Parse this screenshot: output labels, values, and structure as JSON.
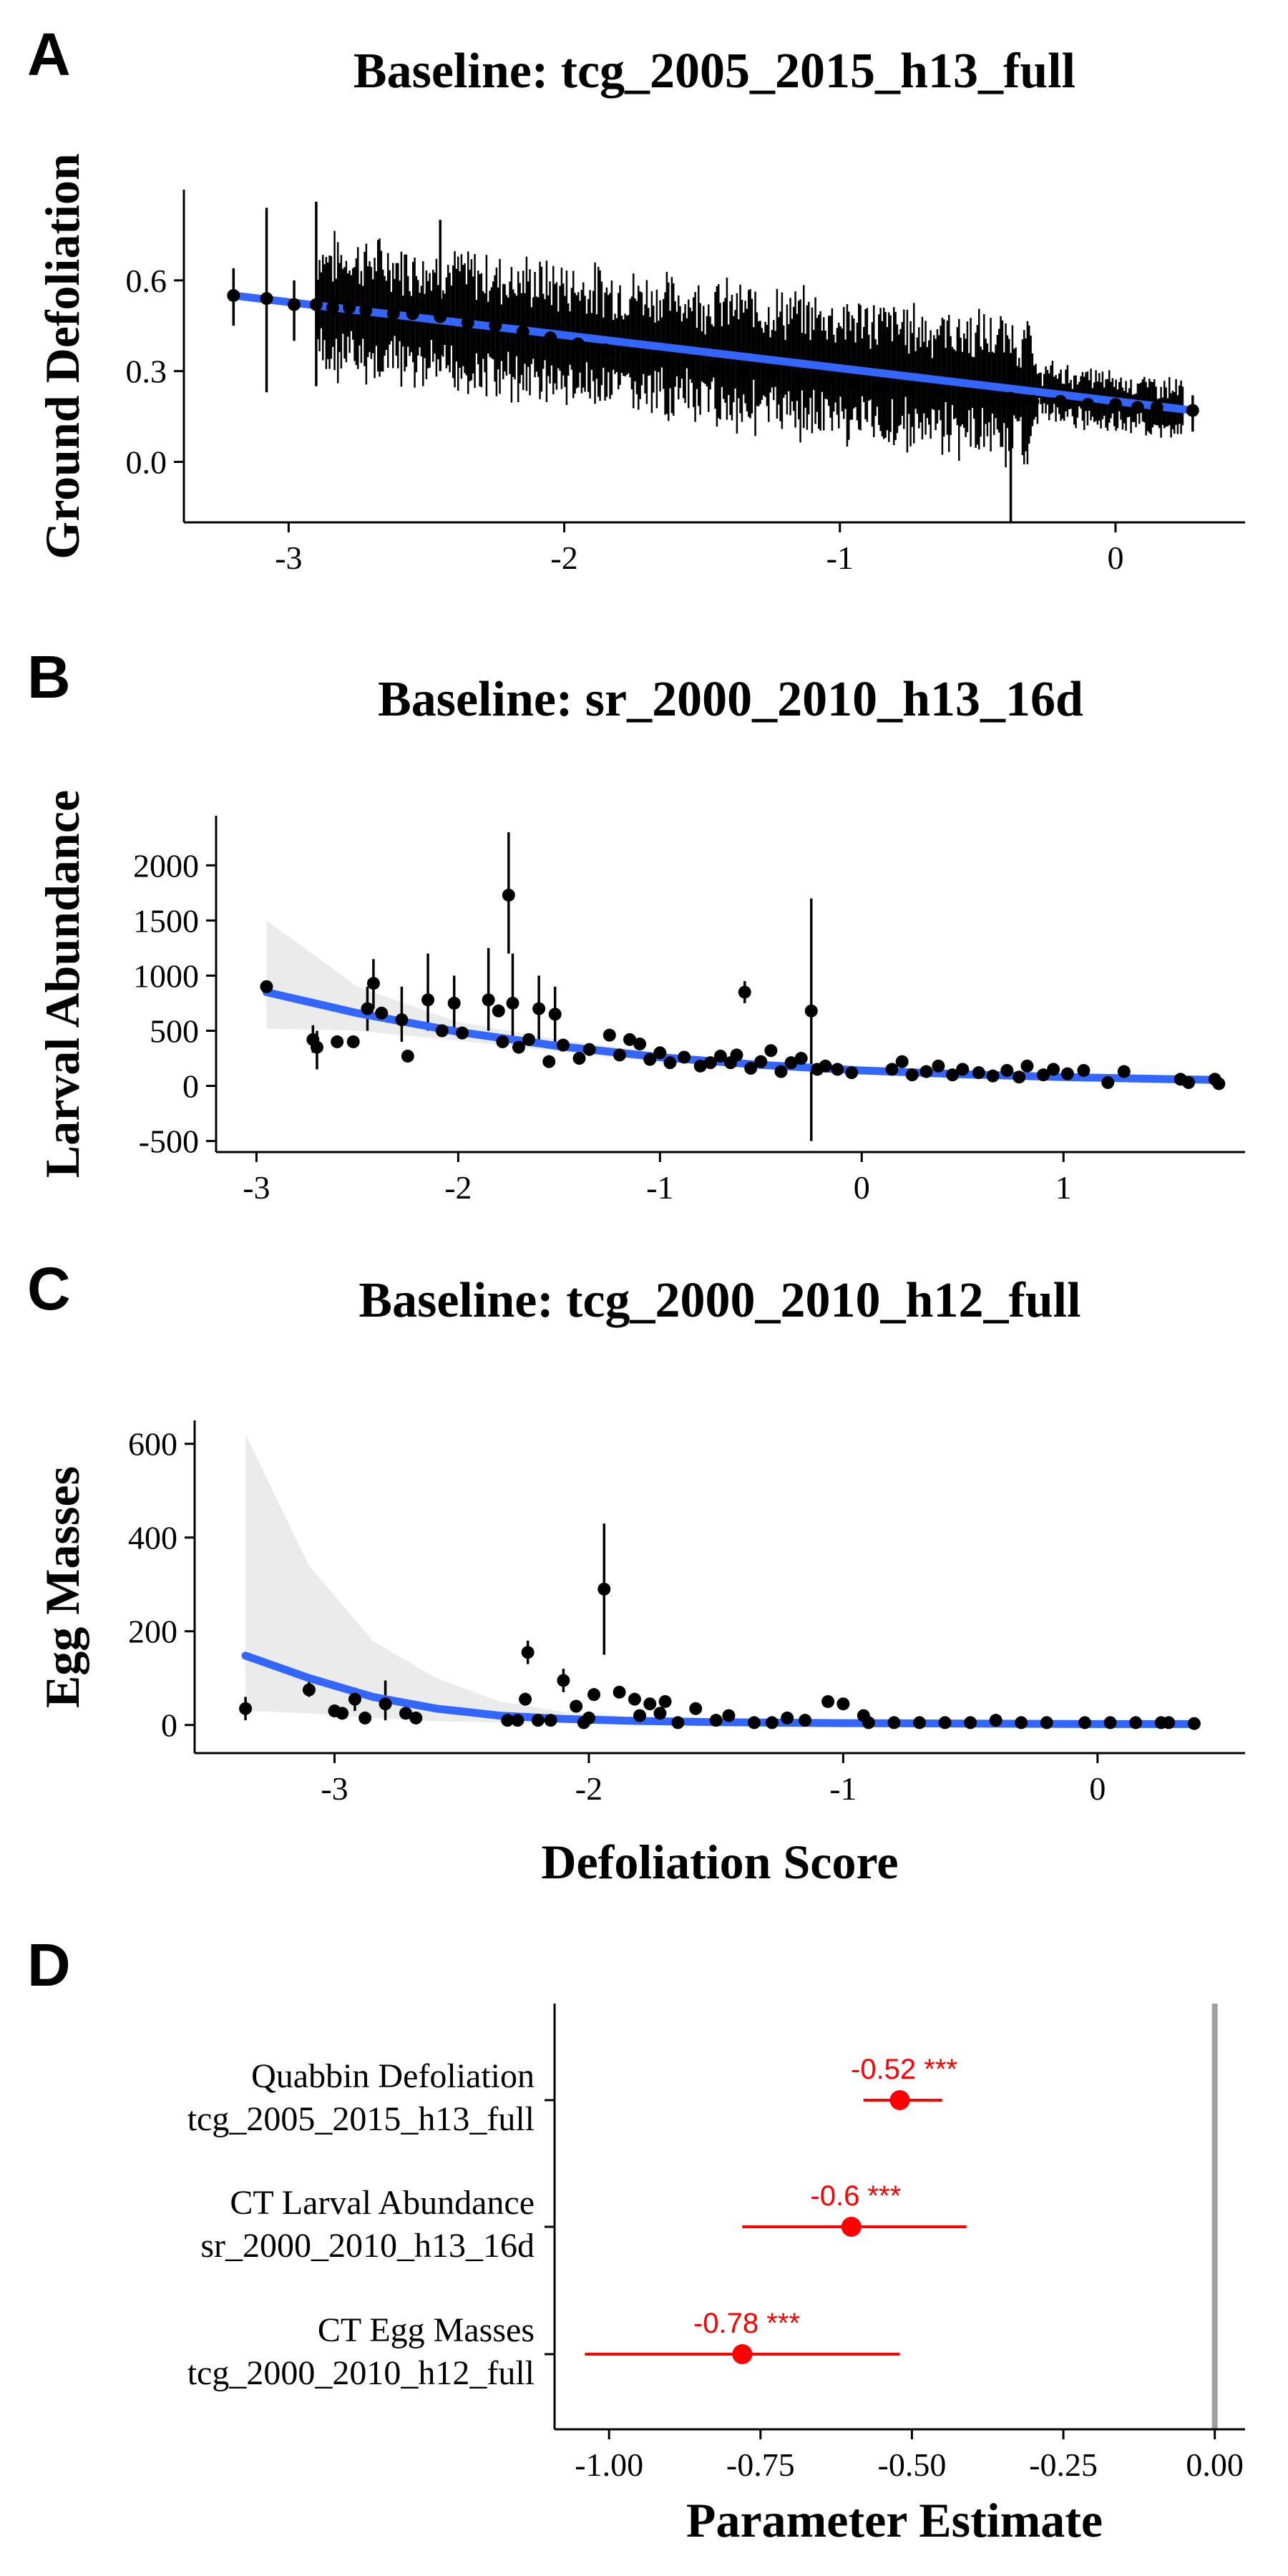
{
  "chart_data": [
    {
      "panel": "A",
      "type": "scatter",
      "title": "Baseline: tcg_2005_2015_h13_full",
      "xlabel": "",
      "ylabel": "Ground Defoliation",
      "xlim": [
        -3.38,
        0.47
      ],
      "ylim": [
        -0.2,
        0.9
      ],
      "xticks": [
        -3,
        -2,
        -1,
        0
      ],
      "yticks": [
        0.0,
        0.3,
        0.6
      ],
      "ytick_labels": [
        "0.0",
        "0.3",
        "0.6"
      ],
      "trend": {
        "x": [
          -3.2,
          0.28
        ],
        "y": [
          0.55,
          0.17
        ]
      },
      "points": [
        {
          "x": -3.2,
          "y": 0.55,
          "lo": 0.45,
          "hi": 0.64
        },
        {
          "x": -3.08,
          "y": 0.54,
          "lo": 0.23,
          "hi": 0.84
        },
        {
          "x": -2.98,
          "y": 0.52,
          "lo": 0.4,
          "hi": 0.6
        },
        {
          "x": -2.9,
          "y": 0.52,
          "lo": 0.25,
          "hi": 0.86
        },
        {
          "x": -2.84,
          "y": 0.51
        },
        {
          "x": -2.78,
          "y": 0.51
        },
        {
          "x": -2.72,
          "y": 0.5
        },
        {
          "x": -2.62,
          "y": 0.49
        },
        {
          "x": -2.55,
          "y": 0.49
        },
        {
          "x": -2.45,
          "y": 0.48,
          "lo": 0.3,
          "hi": 0.8
        },
        {
          "x": -2.35,
          "y": 0.46
        },
        {
          "x": -2.25,
          "y": 0.45
        },
        {
          "x": -2.15,
          "y": 0.43
        },
        {
          "x": -2.05,
          "y": 0.41
        },
        {
          "x": -1.95,
          "y": 0.39
        },
        {
          "x": -1.85,
          "y": 0.37
        },
        {
          "x": -1.75,
          "y": 0.35
        },
        {
          "x": -1.65,
          "y": 0.34
        },
        {
          "x": -1.55,
          "y": 0.33
        },
        {
          "x": -1.45,
          "y": 0.31
        },
        {
          "x": -1.35,
          "y": 0.3
        },
        {
          "x": -1.25,
          "y": 0.29
        },
        {
          "x": -1.15,
          "y": 0.28
        },
        {
          "x": -1.05,
          "y": 0.27
        },
        {
          "x": -0.95,
          "y": 0.26
        },
        {
          "x": -0.85,
          "y": 0.25
        },
        {
          "x": -0.75,
          "y": 0.24
        },
        {
          "x": -0.65,
          "y": 0.23
        },
        {
          "x": -0.55,
          "y": 0.22
        },
        {
          "x": -0.45,
          "y": 0.21
        },
        {
          "x": -0.38,
          "y": 0.21,
          "lo": -0.2,
          "hi": 0.36
        },
        {
          "x": -0.3,
          "y": 0.2
        },
        {
          "x": -0.2,
          "y": 0.2
        },
        {
          "x": -0.1,
          "y": 0.19
        },
        {
          "x": 0.0,
          "y": 0.19
        },
        {
          "x": 0.08,
          "y": 0.18
        },
        {
          "x": 0.15,
          "y": 0.18
        },
        {
          "x": 0.28,
          "y": 0.17,
          "lo": 0.1,
          "hi": 0.22
        }
      ]
    },
    {
      "panel": "B",
      "type": "scatter",
      "title": "Baseline: sr_2000_2010_h13_16d",
      "xlabel": "",
      "ylabel": "Larval Abundance",
      "xlim": [
        -3.2,
        1.9
      ],
      "ylim": [
        -600,
        2450
      ],
      "xticks": [
        -3,
        -2,
        -1,
        0,
        1
      ],
      "yticks": [
        -500,
        0,
        500,
        1000,
        1500,
        2000
      ],
      "trend": {
        "x": [
          -2.95,
          -2.5,
          -2.0,
          -1.5,
          -1.0,
          -0.5,
          0.0,
          0.5,
          1.0,
          1.5,
          1.75
        ],
        "y": [
          850,
          660,
          490,
          360,
          260,
          190,
          140,
          105,
          80,
          62,
          55
        ]
      },
      "band_lower": [
        520,
        500,
        410,
        310,
        220,
        160,
        115,
        85,
        60,
        40,
        30
      ],
      "band_upper": [
        1500,
        900,
        580,
        420,
        300,
        220,
        165,
        125,
        100,
        85,
        80
      ],
      "points": [
        {
          "x": -2.95,
          "y": 900
        },
        {
          "x": -2.72,
          "y": 420,
          "lo": 300,
          "hi": 550
        },
        {
          "x": -2.7,
          "y": 350,
          "lo": 150,
          "hi": 500
        },
        {
          "x": -2.6,
          "y": 400
        },
        {
          "x": -2.52,
          "y": 400
        },
        {
          "x": -2.45,
          "y": 700,
          "lo": 500,
          "hi": 900
        },
        {
          "x": -2.42,
          "y": 930,
          "lo": 700,
          "hi": 1150
        },
        {
          "x": -2.38,
          "y": 660
        },
        {
          "x": -2.28,
          "y": 600,
          "lo": 400,
          "hi": 900
        },
        {
          "x": -2.25,
          "y": 270
        },
        {
          "x": -2.15,
          "y": 780,
          "lo": 500,
          "hi": 1200
        },
        {
          "x": -2.08,
          "y": 500
        },
        {
          "x": -2.02,
          "y": 750,
          "lo": 500,
          "hi": 1000
        },
        {
          "x": -1.98,
          "y": 480
        },
        {
          "x": -1.85,
          "y": 780,
          "lo": 500,
          "hi": 1250
        },
        {
          "x": -1.8,
          "y": 680
        },
        {
          "x": -1.78,
          "y": 400
        },
        {
          "x": -1.75,
          "y": 1730,
          "lo": 1200,
          "hi": 2300
        },
        {
          "x": -1.73,
          "y": 750,
          "lo": 400,
          "hi": 1200
        },
        {
          "x": -1.7,
          "y": 350
        },
        {
          "x": -1.65,
          "y": 420
        },
        {
          "x": -1.6,
          "y": 700,
          "lo": 400,
          "hi": 1000
        },
        {
          "x": -1.55,
          "y": 220
        },
        {
          "x": -1.52,
          "y": 650,
          "lo": 400,
          "hi": 900
        },
        {
          "x": -1.48,
          "y": 370
        },
        {
          "x": -1.4,
          "y": 250
        },
        {
          "x": -1.35,
          "y": 330
        },
        {
          "x": -1.25,
          "y": 460
        },
        {
          "x": -1.2,
          "y": 280
        },
        {
          "x": -1.15,
          "y": 420
        },
        {
          "x": -1.1,
          "y": 380
        },
        {
          "x": -1.05,
          "y": 240
        },
        {
          "x": -1.0,
          "y": 300
        },
        {
          "x": -0.95,
          "y": 210
        },
        {
          "x": -0.88,
          "y": 260
        },
        {
          "x": -0.8,
          "y": 180
        },
        {
          "x": -0.75,
          "y": 210
        },
        {
          "x": -0.7,
          "y": 270
        },
        {
          "x": -0.65,
          "y": 210
        },
        {
          "x": -0.62,
          "y": 280
        },
        {
          "x": -0.58,
          "y": 850,
          "lo": 750,
          "hi": 950
        },
        {
          "x": -0.55,
          "y": 160
        },
        {
          "x": -0.5,
          "y": 220
        },
        {
          "x": -0.45,
          "y": 320
        },
        {
          "x": -0.4,
          "y": 130
        },
        {
          "x": -0.35,
          "y": 210
        },
        {
          "x": -0.3,
          "y": 250
        },
        {
          "x": -0.25,
          "y": 680,
          "lo": -500,
          "hi": 1700
        },
        {
          "x": -0.22,
          "y": 150
        },
        {
          "x": -0.18,
          "y": 180
        },
        {
          "x": -0.12,
          "y": 150
        },
        {
          "x": -0.05,
          "y": 120
        },
        {
          "x": 0.15,
          "y": 150
        },
        {
          "x": 0.2,
          "y": 220
        },
        {
          "x": 0.25,
          "y": 100
        },
        {
          "x": 0.32,
          "y": 130
        },
        {
          "x": 0.38,
          "y": 180
        },
        {
          "x": 0.45,
          "y": 100
        },
        {
          "x": 0.5,
          "y": 150
        },
        {
          "x": 0.58,
          "y": 120
        },
        {
          "x": 0.65,
          "y": 90
        },
        {
          "x": 0.72,
          "y": 140
        },
        {
          "x": 0.78,
          "y": 80
        },
        {
          "x": 0.82,
          "y": 180
        },
        {
          "x": 0.9,
          "y": 100
        },
        {
          "x": 0.95,
          "y": 150
        },
        {
          "x": 1.02,
          "y": 110
        },
        {
          "x": 1.1,
          "y": 140
        },
        {
          "x": 1.22,
          "y": 30
        },
        {
          "x": 1.3,
          "y": 130
        },
        {
          "x": 1.58,
          "y": 60
        },
        {
          "x": 1.62,
          "y": 30
        },
        {
          "x": 1.75,
          "y": 60
        },
        {
          "x": 1.77,
          "y": 20
        }
      ]
    },
    {
      "panel": "C",
      "type": "scatter",
      "title": "Baseline: tcg_2000_2010_h12_full",
      "xlabel": "Defoliation Score",
      "ylabel": "Egg Masses",
      "xlim": [
        -3.55,
        0.58
      ],
      "ylim": [
        -60,
        650
      ],
      "xticks": [
        -3,
        -2,
        -1,
        0
      ],
      "yticks": [
        0,
        200,
        400,
        600
      ],
      "trend": {
        "x": [
          -3.35,
          -3.1,
          -2.85,
          -2.6,
          -2.35,
          -2.1,
          -1.85,
          -1.5,
          -1.0,
          -0.5,
          0.0,
          0.38
        ],
        "y": [
          148,
          100,
          60,
          35,
          20,
          13,
          9,
          6,
          4,
          3,
          2,
          2
        ]
      },
      "band_lower": [
        30,
        25,
        15,
        8,
        5,
        4,
        3,
        2,
        1,
        1,
        0,
        0
      ],
      "band_upper": [
        620,
        340,
        180,
        100,
        50,
        28,
        18,
        12,
        8,
        6,
        5,
        5
      ],
      "points": [
        {
          "x": -3.35,
          "y": 35,
          "lo": 10,
          "hi": 60
        },
        {
          "x": -3.1,
          "y": 75,
          "lo": 60,
          "hi": 95
        },
        {
          "x": -3.0,
          "y": 30
        },
        {
          "x": -2.97,
          "y": 25
        },
        {
          "x": -2.92,
          "y": 55,
          "lo": 30,
          "hi": 80
        },
        {
          "x": -2.88,
          "y": 15
        },
        {
          "x": -2.8,
          "y": 45,
          "lo": 10,
          "hi": 95
        },
        {
          "x": -2.72,
          "y": 25
        },
        {
          "x": -2.68,
          "y": 15
        },
        {
          "x": -2.32,
          "y": 10
        },
        {
          "x": -2.28,
          "y": 10
        },
        {
          "x": -2.25,
          "y": 55
        },
        {
          "x": -2.24,
          "y": 155,
          "lo": 130,
          "hi": 180
        },
        {
          "x": -2.2,
          "y": 10
        },
        {
          "x": -2.15,
          "y": 10
        },
        {
          "x": -2.1,
          "y": 95,
          "lo": 70,
          "hi": 120
        },
        {
          "x": -2.05,
          "y": 40
        },
        {
          "x": -2.02,
          "y": 5
        },
        {
          "x": -2.0,
          "y": 15
        },
        {
          "x": -1.98,
          "y": 65
        },
        {
          "x": -1.94,
          "y": 290,
          "lo": 150,
          "hi": 430
        },
        {
          "x": -1.88,
          "y": 70
        },
        {
          "x": -1.82,
          "y": 55
        },
        {
          "x": -1.8,
          "y": 20
        },
        {
          "x": -1.76,
          "y": 45
        },
        {
          "x": -1.72,
          "y": 25
        },
        {
          "x": -1.7,
          "y": 50
        },
        {
          "x": -1.65,
          "y": 5
        },
        {
          "x": -1.58,
          "y": 35
        },
        {
          "x": -1.5,
          "y": 10
        },
        {
          "x": -1.45,
          "y": 20
        },
        {
          "x": -1.35,
          "y": 5
        },
        {
          "x": -1.28,
          "y": 5
        },
        {
          "x": -1.22,
          "y": 15
        },
        {
          "x": -1.15,
          "y": 10
        },
        {
          "x": -1.06,
          "y": 50
        },
        {
          "x": -1.0,
          "y": 45
        },
        {
          "x": -0.92,
          "y": 20
        },
        {
          "x": -0.9,
          "y": 5
        },
        {
          "x": -0.8,
          "y": 5
        },
        {
          "x": -0.7,
          "y": 5
        },
        {
          "x": -0.6,
          "y": 5
        },
        {
          "x": -0.5,
          "y": 5
        },
        {
          "x": -0.4,
          "y": 10
        },
        {
          "x": -0.3,
          "y": 5
        },
        {
          "x": -0.2,
          "y": 5
        },
        {
          "x": -0.05,
          "y": 5
        },
        {
          "x": 0.05,
          "y": 5
        },
        {
          "x": 0.15,
          "y": 5
        },
        {
          "x": 0.25,
          "y": 5
        },
        {
          "x": 0.28,
          "y": 5
        },
        {
          "x": 0.38,
          "y": 3
        }
      ]
    },
    {
      "panel": "D",
      "type": "scatter",
      "title": "",
      "xlabel": "Parameter Estimate",
      "ylabel": "",
      "xlim": [
        -1.09,
        0.05
      ],
      "xticks": [
        -1.0,
        -0.75,
        -0.5,
        -0.25,
        0.0
      ],
      "xtick_labels": [
        "-1.00",
        "-0.75",
        "-0.50",
        "-0.25",
        "0.00"
      ],
      "reference_line_x": 0,
      "categories": [
        [
          "Quabbin Defoliation",
          "tcg_2005_2015_h13_full"
        ],
        [
          "CT Larval Abundance",
          "sr_2000_2010_h13_16d"
        ],
        [
          "CT Egg Masses",
          "tcg_2000_2010_h12_full"
        ]
      ],
      "estimates": [
        -0.52,
        -0.6,
        -0.78
      ],
      "lower": [
        -0.58,
        -0.78,
        -1.04
      ],
      "upper": [
        -0.45,
        -0.41,
        -0.52
      ],
      "labels": [
        "-0.52 ***",
        "-0.6 ***",
        "-0.78 ***"
      ]
    }
  ]
}
